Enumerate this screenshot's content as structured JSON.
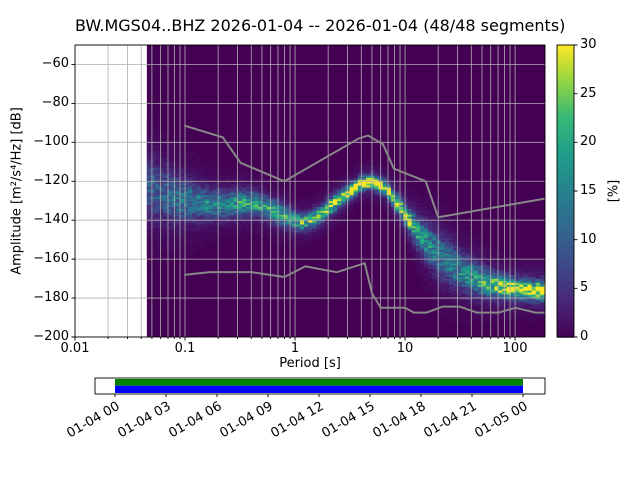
{
  "title": "BW.MGS04..BHZ   2026-01-04 -- 2026-01-04  (48/48 segments)",
  "axes": {
    "xlabel": "Period [s]",
    "ylabel": "Amplitude [m²/s⁴/Hz] [dB]",
    "xscale": "log",
    "xlim": [
      0.01,
      187
    ],
    "ylim": [
      -200,
      -50
    ],
    "xticks": [
      0.01,
      0.1,
      1,
      10,
      100
    ],
    "xtick_labels": [
      "0.01",
      "0.1",
      "1",
      "10",
      "100"
    ],
    "yticks": [
      -60,
      -80,
      -100,
      -120,
      -140,
      -160,
      -180,
      -200
    ],
    "ytick_labels": [
      "−60",
      "−80",
      "−100",
      "−120",
      "−140",
      "−160",
      "−180",
      "−200"
    ],
    "grid_color": "#b0b0b0",
    "background_color": "#440154"
  },
  "colorbar": {
    "label": "[%]",
    "min": 0,
    "max": 30,
    "ticks": [
      0,
      5,
      10,
      15,
      20,
      25,
      30
    ],
    "tick_labels": [
      "0",
      "5",
      "10",
      "15",
      "20",
      "25",
      "30"
    ],
    "colormap": "viridis",
    "viridis_stops": [
      [
        0.0,
        [
          68,
          1,
          84
        ]
      ],
      [
        0.125,
        [
          72,
          40,
          120
        ]
      ],
      [
        0.25,
        [
          62,
          74,
          137
        ]
      ],
      [
        0.375,
        [
          49,
          104,
          142
        ]
      ],
      [
        0.5,
        [
          38,
          130,
          142
        ]
      ],
      [
        0.625,
        [
          31,
          158,
          137
        ]
      ],
      [
        0.75,
        [
          53,
          183,
          121
        ]
      ],
      [
        0.875,
        [
          145,
          213,
          66
        ]
      ],
      [
        1.0,
        [
          253,
          231,
          37
        ]
      ]
    ]
  },
  "chart_data": {
    "type": "heatmap",
    "title": "BW.MGS04..BHZ   2026-01-04 -- 2026-01-04  (48/48 segments)",
    "xlabel": "Period [s]",
    "ylabel": "Amplitude [m²/s⁴/Hz] [dB]",
    "colorbar_label": "[%]",
    "colorbar_range": [
      0,
      30
    ],
    "xscale": "log",
    "xlim": [
      0.01,
      187
    ],
    "ylim": [
      -200,
      -50
    ],
    "histogram": {
      "period_min": 0.045,
      "mode_periods": [
        0.045,
        0.055,
        0.07,
        0.09,
        0.11,
        0.14,
        0.18,
        0.23,
        0.3,
        0.4,
        0.55,
        0.7,
        0.9,
        1.1,
        1.4,
        1.8,
        2.3,
        3.0,
        4.0,
        5.0,
        6.5,
        8.0,
        10,
        13,
        17,
        22,
        30,
        40,
        55,
        75,
        100,
        140,
        187
      ],
      "mode_db": [
        -122,
        -125,
        -127,
        -129,
        -130,
        -131,
        -132,
        -132,
        -131,
        -131,
        -133,
        -136,
        -139,
        -141,
        -140,
        -136,
        -131,
        -126,
        -121,
        -120,
        -123,
        -129,
        -137,
        -146,
        -153,
        -159,
        -165,
        -169,
        -172,
        -174,
        -175,
        -176,
        -176
      ],
      "mode_peak_pct": [
        8,
        9,
        10,
        11,
        12,
        13,
        14,
        15,
        16,
        17,
        16,
        17,
        18,
        20,
        20,
        22,
        25,
        28,
        30,
        30,
        28,
        26,
        24,
        18,
        14,
        12,
        13,
        16,
        20,
        24,
        27,
        28,
        28
      ],
      "mode_spread_db": [
        10,
        9,
        8,
        7,
        6,
        5,
        4.5,
        4,
        4,
        3.5,
        3.5,
        3.5,
        3,
        2.5,
        2.5,
        2.5,
        2.5,
        2.2,
        2,
        2,
        2.2,
        2.5,
        3,
        4.5,
        6,
        7,
        6,
        5,
        4,
        3.5,
        3,
        3,
        3
      ]
    },
    "noise_models": {
      "color": "#888888",
      "high_noise_model": [
        [
          0.1,
          -91.5
        ],
        [
          0.22,
          -97.4
        ],
        [
          0.32,
          -110.5
        ],
        [
          0.8,
          -120
        ],
        [
          3.8,
          -98
        ],
        [
          4.6,
          -96.5
        ],
        [
          6.3,
          -101
        ],
        [
          7.9,
          -113.5
        ],
        [
          15.4,
          -120
        ],
        [
          20,
          -138.5
        ],
        [
          187,
          -128.9
        ]
      ],
      "low_noise_model": [
        [
          0.1,
          -168
        ],
        [
          0.17,
          -166.7
        ],
        [
          0.4,
          -166.7
        ],
        [
          0.8,
          -169.2
        ],
        [
          1.24,
          -163.7
        ],
        [
          2.4,
          -166.7
        ],
        [
          4.3,
          -162.1
        ],
        [
          5,
          -177.5
        ],
        [
          6,
          -185
        ],
        [
          10,
          -185
        ],
        [
          12,
          -187.5
        ],
        [
          15.6,
          -187.5
        ],
        [
          21.9,
          -184.4
        ],
        [
          31.6,
          -184.4
        ],
        [
          45,
          -187.5
        ],
        [
          70,
          -187.5
        ],
        [
          101,
          -185
        ],
        [
          154,
          -187.5
        ],
        [
          187,
          -187.5
        ]
      ]
    }
  },
  "timeline": {
    "labels": [
      "01-04 00",
      "01-04 03",
      "01-04 06",
      "01-04 09",
      "01-04 12",
      "01-04 15",
      "01-04 18",
      "01-04 21",
      "01-05 00"
    ],
    "segments_color": "#008000",
    "data_color": "#0000ff"
  }
}
